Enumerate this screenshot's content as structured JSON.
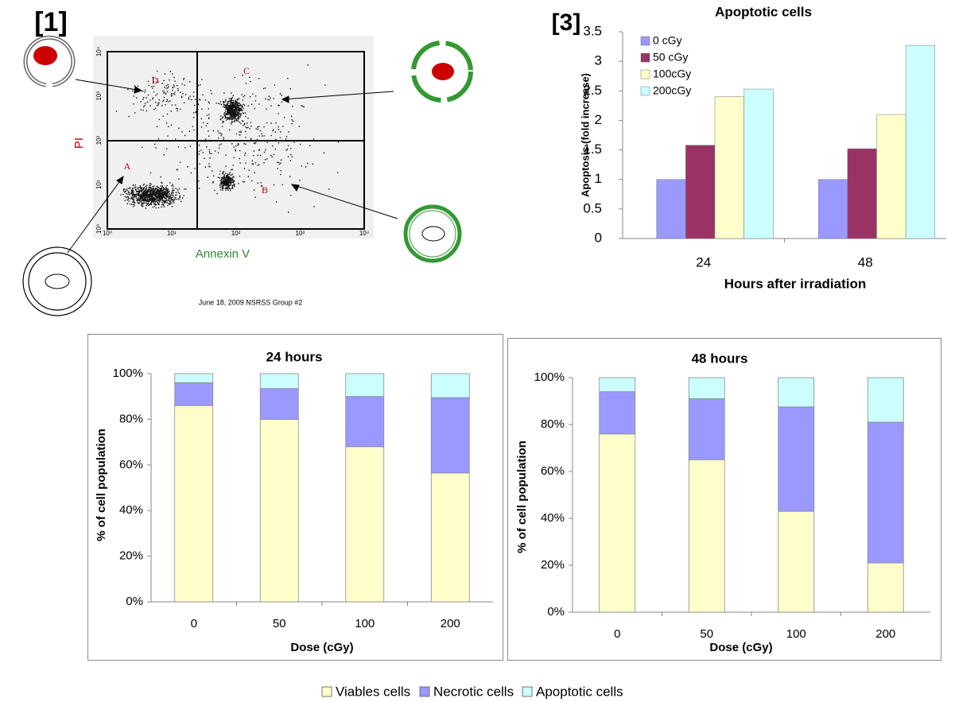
{
  "flow_cytometry": {
    "panel_label": "[1]",
    "y_label": "PI",
    "x_label": "Annexin V",
    "quadrants": [
      "A",
      "B",
      "C",
      "D"
    ],
    "footer": "June 18, 2009 NSRSS Group #2",
    "xticks": [
      "10⁰",
      "10¹",
      "10²",
      "10³",
      "10⁴"
    ],
    "yticks": [
      "10⁰",
      "10¹",
      "10²",
      "10³",
      "10⁴"
    ]
  },
  "chart_data": [
    {
      "type": "bar",
      "panel_label": "[3]",
      "title": "Apoptotic cells",
      "xlabel": "Hours after irradiation",
      "ylabel": "Apoptosis (fold increase)",
      "categories": [
        "24",
        "48"
      ],
      "series": [
        {
          "name": "0 cGy",
          "color": "#9999ff",
          "values": [
            1,
            1
          ]
        },
        {
          "name": "50 cGy",
          "color": "#993366",
          "values": [
            1.58,
            1.52
          ]
        },
        {
          "name": "100cGy",
          "color": "#ffffcc",
          "values": [
            2.4,
            2.1
          ]
        },
        {
          "name": "200cGy",
          "color": "#ccffff",
          "values": [
            2.53,
            3.27
          ]
        }
      ],
      "ylim": [
        0,
        3.5
      ],
      "yticks": [
        0,
        0.5,
        1,
        1.5,
        2,
        2.5,
        3,
        3.5
      ],
      "legend": "top-left"
    },
    {
      "type": "stacked_bar",
      "title": "24 hours",
      "xlabel": "Dose (cGy)",
      "ylabel": "% of cell population",
      "categories": [
        "0",
        "50",
        "100",
        "200"
      ],
      "series": [
        {
          "name": "Viables cells",
          "color": "#ffffcc",
          "values": [
            86,
            80,
            68,
            56.5
          ]
        },
        {
          "name": "Necrotic cells",
          "color": "#9999ff",
          "values": [
            10,
            13.5,
            22,
            33
          ]
        },
        {
          "name": "Apoptotic cells",
          "color": "#ccffff",
          "values": [
            4,
            6.5,
            10,
            10.5
          ]
        }
      ],
      "ylim": [
        0,
        100
      ],
      "yticks": [
        {
          "value": 0,
          "label": "0%"
        },
        {
          "value": 20,
          "label": "20%"
        },
        {
          "value": 40,
          "label": "40%"
        },
        {
          "value": 60,
          "label": "60%"
        },
        {
          "value": 80,
          "label": "80%"
        },
        {
          "value": 100,
          "label": "100%"
        }
      ],
      "legend": "bottom"
    },
    {
      "type": "stacked_bar",
      "title": "48 hours",
      "xlabel": "Dose (cGy)",
      "ylabel": "% of cell population",
      "categories": [
        "0",
        "50",
        "100",
        "200"
      ],
      "series": [
        {
          "name": "Viables cells",
          "color": "#ffffcc",
          "values": [
            76,
            65,
            43,
            21
          ]
        },
        {
          "name": "Necrotic cells",
          "color": "#9999ff",
          "values": [
            18,
            26,
            44.5,
            60
          ]
        },
        {
          "name": "Apoptotic cells",
          "color": "#ccffff",
          "values": [
            6,
            9,
            12.5,
            19
          ]
        }
      ],
      "ylim": [
        0,
        100
      ],
      "yticks": [
        {
          "value": 0,
          "label": "0%"
        },
        {
          "value": 20,
          "label": "20%"
        },
        {
          "value": 40,
          "label": "40%"
        },
        {
          "value": 60,
          "label": "60%"
        },
        {
          "value": 80,
          "label": "80%"
        },
        {
          "value": 100,
          "label": "100%"
        }
      ]
    }
  ]
}
